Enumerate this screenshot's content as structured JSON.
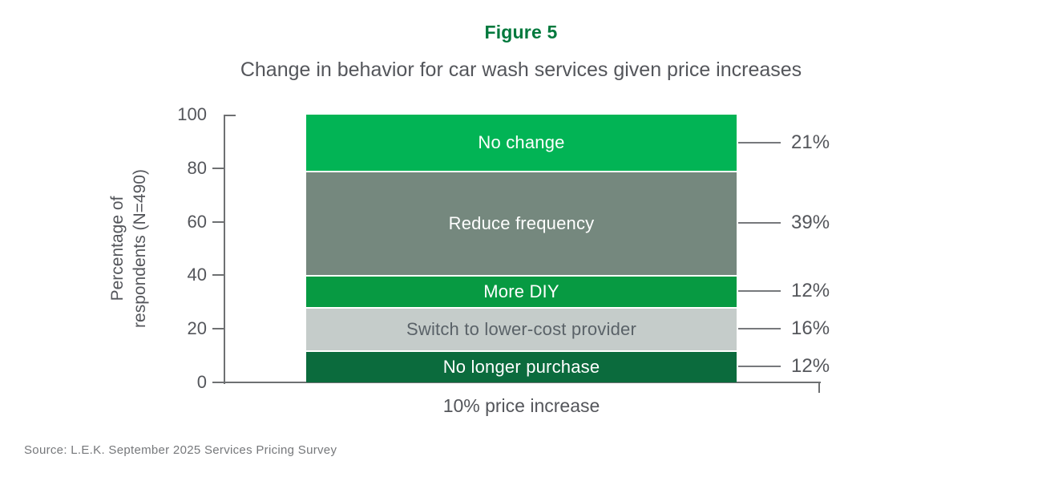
{
  "figure_label": "Figure 5",
  "subtitle": "Change in behavior for car wash services given price increases",
  "source": "Source: L.E.K. September 2025 Services Pricing Survey",
  "colors": {
    "title_green": "#00793D",
    "axis_gray": "#6E7072",
    "text_gray": "#54565B",
    "source_gray": "#76787B"
  },
  "chart_data": {
    "type": "bar",
    "stacked": true,
    "title": "Figure 5",
    "subtitle": "Change in behavior for car wash services given price increases",
    "categories": [
      "10% price increase"
    ],
    "xlabel": "10% price increase",
    "ylabel_line1": "Percentage of",
    "ylabel_line2": "respondents (N=490)",
    "ylim": [
      0,
      100
    ],
    "yticks": [
      0,
      20,
      40,
      60,
      80,
      100
    ],
    "grid": false,
    "legend_position": "in-bar-labels",
    "segments_top_to_bottom": [
      {
        "label": "No change",
        "value": 21,
        "pct_label": "21%",
        "color": "#02B455",
        "text_color": "#FFFFFF"
      },
      {
        "label": "Reduce frequency",
        "value": 39,
        "pct_label": "39%",
        "color": "#75887E",
        "text_color": "#FFFFFF"
      },
      {
        "label": "More DIY",
        "value": 12,
        "pct_label": "12%",
        "color": "#079A42",
        "text_color": "#FFFFFF"
      },
      {
        "label": "Switch to lower-cost provider",
        "value": 16,
        "pct_label": "16%",
        "color": "#C5CCCA",
        "text_color": "#5A6268"
      },
      {
        "label": "No longer purchase",
        "value": 12,
        "pct_label": "12%",
        "color": "#0B6B3D",
        "text_color": "#FFFFFF"
      }
    ]
  }
}
